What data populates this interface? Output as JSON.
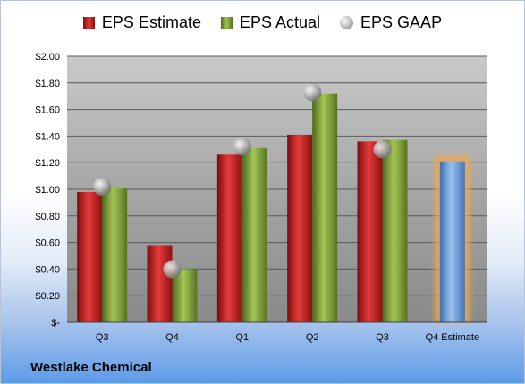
{
  "chart_data": {
    "type": "bar",
    "categories": [
      "Q3",
      "Q4",
      "Q1",
      "Q2",
      "Q3",
      "Q4 Estimate"
    ],
    "series": [
      {
        "name": "EPS Estimate",
        "values": [
          0.98,
          0.58,
          1.26,
          1.41,
          1.36,
          null
        ],
        "color": "#d42a2a"
      },
      {
        "name": "EPS Actual",
        "values": [
          1.01,
          0.4,
          1.31,
          1.72,
          1.37,
          null
        ],
        "color": "#8db04a"
      },
      {
        "name": "EPS GAAP",
        "values": [
          1.02,
          0.4,
          1.32,
          1.73,
          1.3,
          null
        ],
        "color": "#b0b0b0"
      }
    ],
    "forecast": {
      "category": "Q4 Estimate",
      "value": 1.21,
      "color": "#6d9fdc",
      "glow": "#f5a84a"
    },
    "yticks": [
      "$2.00",
      "$1.80",
      "$1.60",
      "$1.40",
      "$1.20",
      "$1.00",
      "$0.80",
      "$0.60",
      "$0.40",
      "$0.20",
      "$-"
    ],
    "ylim": [
      0,
      2.0
    ],
    "grid": true,
    "legend": "top-center"
  },
  "legend": {
    "estimate": "EPS Estimate",
    "actual": "EPS Actual",
    "gaap": "EPS GAAP"
  },
  "company": "Westlake Chemical"
}
